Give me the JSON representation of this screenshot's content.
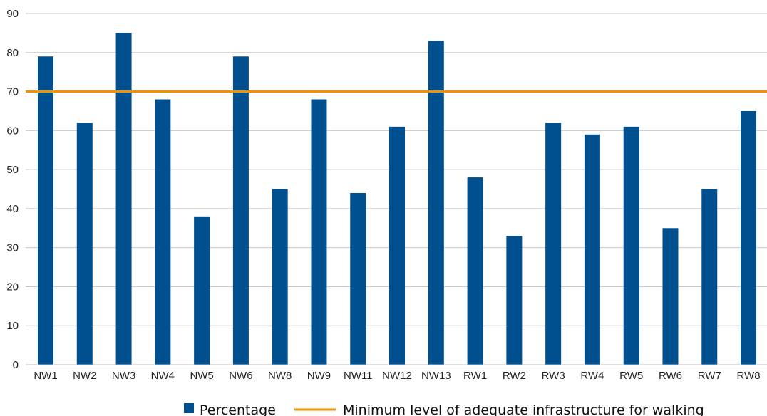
{
  "chart_data": {
    "type": "bar",
    "categories": [
      "NW1",
      "NW2",
      "NW3",
      "NW4",
      "NW5",
      "NW6",
      "NW8",
      "NW9",
      "NW11",
      "NW12",
      "NW13",
      "RW1",
      "RW2",
      "RW3",
      "RW4",
      "RW5",
      "RW6",
      "RW7",
      "RW8"
    ],
    "series": [
      {
        "name": "Percentage",
        "values": [
          79,
          62,
          85,
          68,
          38,
          79,
          45,
          68,
          44,
          61,
          83,
          48,
          33,
          62,
          59,
          61,
          35,
          45,
          65
        ]
      }
    ],
    "reference_line": {
      "name": "Minimum level of adequate infrastructure for walking",
      "value": 70
    },
    "title": "",
    "xlabel": "",
    "ylabel": "",
    "ylim": [
      0,
      90
    ],
    "yticks": [
      0,
      10,
      20,
      30,
      40,
      50,
      60,
      70,
      80,
      90
    ],
    "grid": true,
    "legend_position": "bottom-center",
    "colors": {
      "bar": "#004f8f",
      "reference_line": "#f39200",
      "grid": "#c8c8c8"
    }
  }
}
